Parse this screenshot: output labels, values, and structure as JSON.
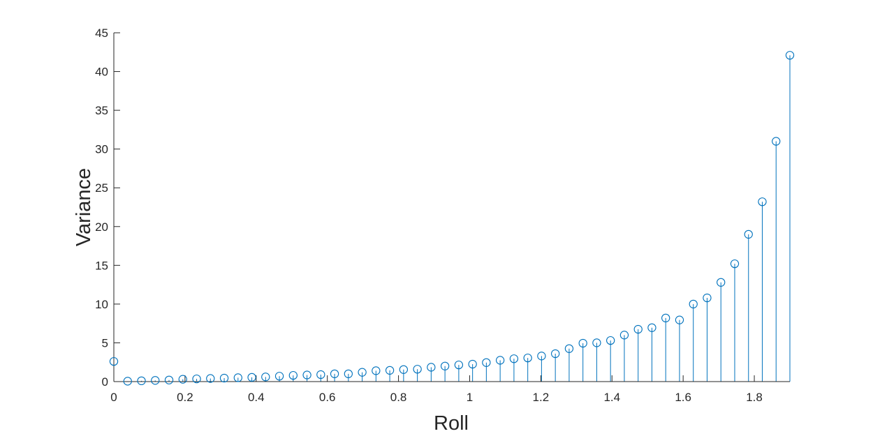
{
  "chart_data": {
    "type": "stem",
    "xlabel": "Roll",
    "ylabel": "Variance",
    "xlim": [
      0,
      1.9
    ],
    "ylim": [
      0,
      45
    ],
    "xticks": [
      0,
      0.2,
      0.4,
      0.6,
      0.8,
      1,
      1.2,
      1.4,
      1.6,
      1.8
    ],
    "xtick_labels": [
      "0",
      "0.2",
      "0.4",
      "0.6",
      "0.8",
      "1",
      "1.2",
      "1.4",
      "1.6",
      "1.8"
    ],
    "yticks": [
      0,
      5,
      10,
      15,
      20,
      25,
      30,
      35,
      40,
      45
    ],
    "ytick_labels": [
      "0",
      "5",
      "10",
      "15",
      "20",
      "25",
      "30",
      "35",
      "40",
      "45"
    ],
    "grid": false,
    "marker": "circle",
    "color": "#0072BD",
    "axis_color": "#262626",
    "series": [
      {
        "x": [
          0,
          0.0388,
          0.0776,
          0.1163,
          0.1551,
          0.1939,
          0.2327,
          0.2714,
          0.3102,
          0.349,
          0.3878,
          0.4265,
          0.4653,
          0.5041,
          0.5429,
          0.5816,
          0.6204,
          0.6592,
          0.698,
          0.7367,
          0.7755,
          0.8143,
          0.8531,
          0.8918,
          0.9306,
          0.9694,
          1.0082,
          1.0469,
          1.0857,
          1.1245,
          1.1633,
          1.202,
          1.2408,
          1.2796,
          1.3184,
          1.3571,
          1.3959,
          1.4347,
          1.4735,
          1.5122,
          1.551,
          1.5898,
          1.6286,
          1.6673,
          1.7061,
          1.7449,
          1.7837,
          1.8224,
          1.8612,
          1.9
        ],
        "values": [
          2.6,
          0.05,
          0.1,
          0.15,
          0.2,
          0.3,
          0.35,
          0.4,
          0.45,
          0.5,
          0.55,
          0.6,
          0.7,
          0.8,
          0.85,
          0.9,
          1.0,
          1.0,
          1.2,
          1.4,
          1.45,
          1.55,
          1.6,
          1.85,
          2.0,
          2.15,
          2.25,
          2.45,
          2.75,
          2.95,
          3.05,
          3.3,
          3.6,
          4.25,
          4.95,
          5.0,
          5.3,
          6.0,
          6.75,
          6.95,
          8.2,
          7.95,
          10.0,
          10.8,
          12.8,
          15.2,
          19.0,
          23.2,
          31.0,
          42.1
        ]
      }
    ]
  }
}
